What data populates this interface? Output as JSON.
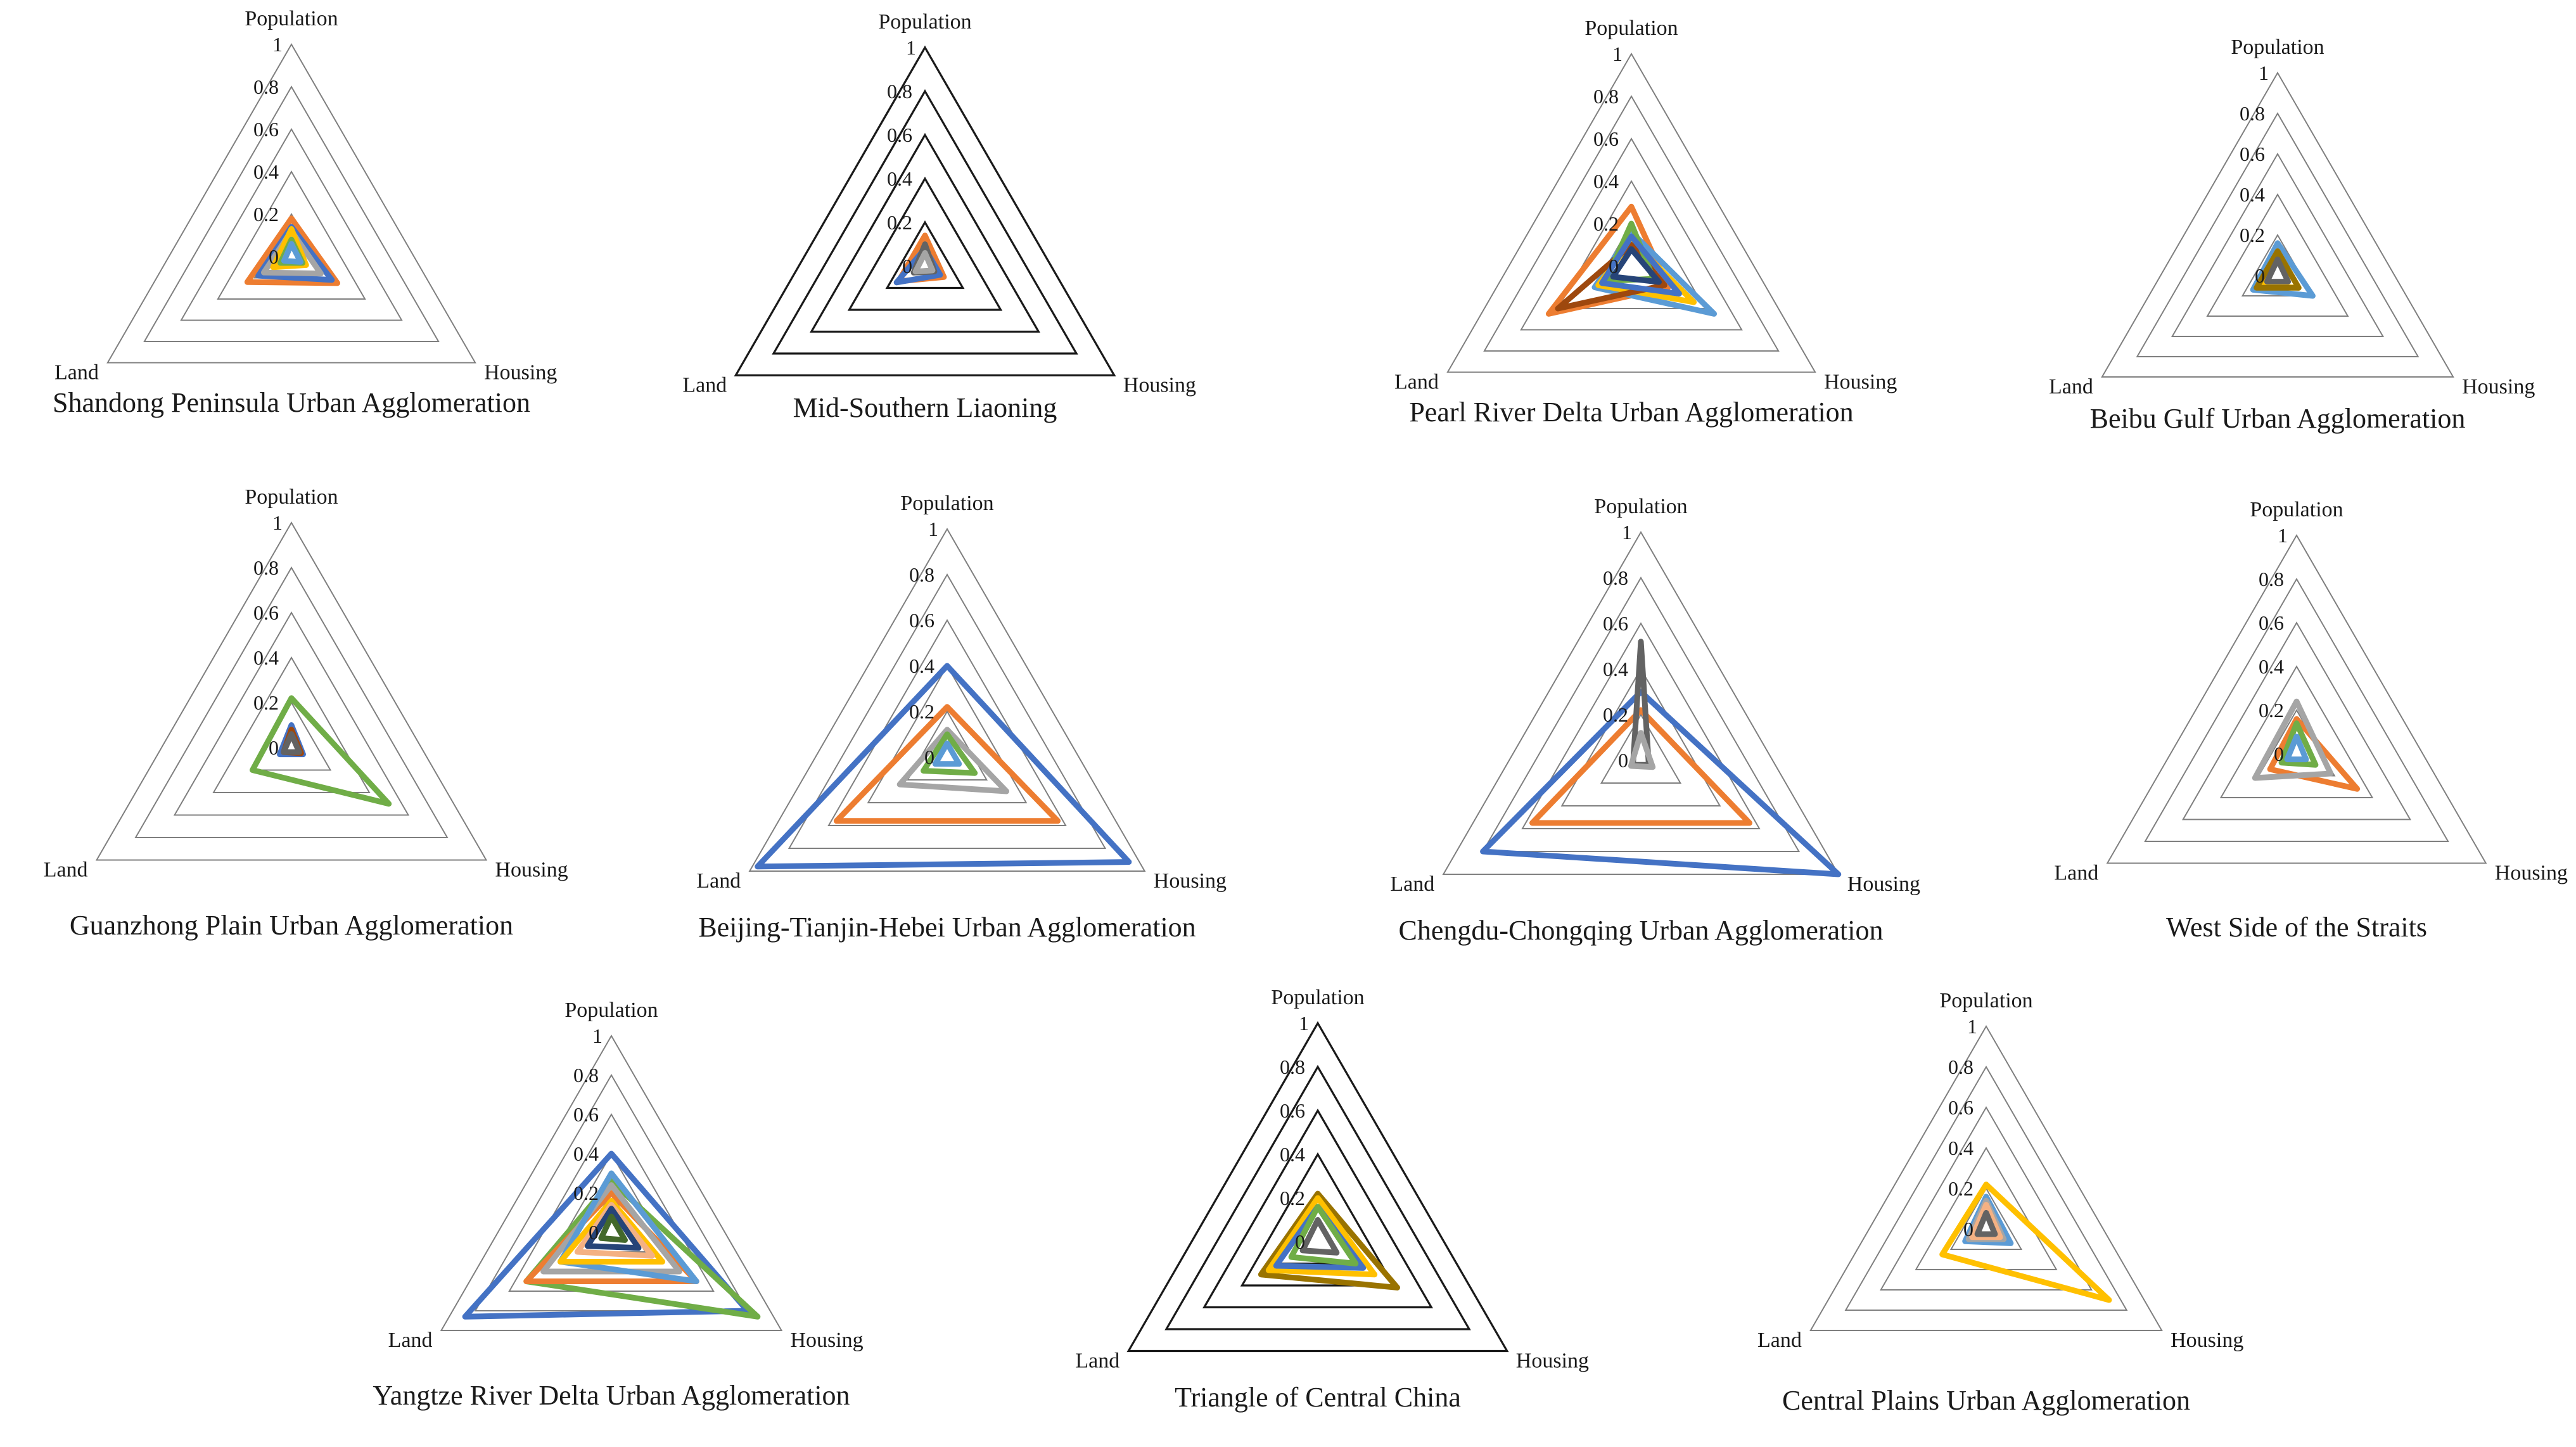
{
  "palette": [
    "#4472C4",
    "#ED7D31",
    "#A5A5A5",
    "#FFC000",
    "#5B9BD5",
    "#70AD47",
    "#264478",
    "#9E480E",
    "#636363",
    "#997300",
    "#43682B",
    "#F4B183"
  ],
  "chart_data": [
    {
      "type": "radar",
      "title": "Shandong Peninsula Urban Agglomeration",
      "axes": [
        "Population",
        "Housing",
        "Land"
      ],
      "rlim": [
        0,
        1
      ],
      "ticks": [
        "0",
        "0.2",
        "0.4",
        "0.6",
        "0.8",
        "1"
      ],
      "grid_color": "#7f7f7f",
      "series": [
        {
          "color": "#ED7D31",
          "values": [
            0.18,
            0.25,
            0.24
          ]
        },
        {
          "color": "#4472C4",
          "values": [
            0.14,
            0.22,
            0.18
          ]
        },
        {
          "color": "#A5A5A5",
          "values": [
            0.12,
            0.16,
            0.15
          ]
        },
        {
          "color": "#FFC000",
          "values": [
            0.13,
            0.08,
            0.1
          ]
        },
        {
          "color": "#70AD47",
          "values": [
            0.08,
            0.06,
            0.06
          ]
        },
        {
          "color": "#5B9BD5",
          "values": [
            0.06,
            0.05,
            0.04
          ]
        }
      ]
    },
    {
      "type": "radar",
      "title": "Mid-Southern Liaoning",
      "axes": [
        "Population",
        "Housing",
        "Land"
      ],
      "rlim": [
        0,
        1
      ],
      "ticks": [
        "0",
        "0.2",
        "0.4",
        "0.6",
        "0.8",
        "1"
      ],
      "grid_color": "#1a1a1a",
      "series": [
        {
          "color": "#ED7D31",
          "values": [
            0.14,
            0.1,
            0.14
          ]
        },
        {
          "color": "#4472C4",
          "values": [
            0.08,
            0.08,
            0.15
          ]
        },
        {
          "color": "#636363",
          "values": [
            0.1,
            0.05,
            0.06
          ]
        },
        {
          "color": "#A5A5A5",
          "values": [
            0.06,
            0.04,
            0.05
          ]
        }
      ]
    },
    {
      "type": "radar",
      "title": "Pearl River Delta Urban Agglomeration",
      "axes": [
        "Population",
        "Housing",
        "Land"
      ],
      "rlim": [
        0,
        1
      ],
      "ticks": [
        "0",
        "0.2",
        "0.4",
        "0.6",
        "0.8",
        "1"
      ],
      "grid_color": "#7f7f7f",
      "series": [
        {
          "color": "#ED7D31",
          "values": [
            0.28,
            0.2,
            0.45
          ]
        },
        {
          "color": "#5B9BD5",
          "values": [
            0.16,
            0.45,
            0.2
          ]
        },
        {
          "color": "#FFC000",
          "values": [
            0.12,
            0.34,
            0.18
          ]
        },
        {
          "color": "#9E480E",
          "values": [
            0.1,
            0.18,
            0.4
          ]
        },
        {
          "color": "#70AD47",
          "values": [
            0.2,
            0.12,
            0.14
          ]
        },
        {
          "color": "#4472C4",
          "values": [
            0.14,
            0.26,
            0.16
          ]
        },
        {
          "color": "#264478",
          "values": [
            0.08,
            0.15,
            0.1
          ]
        }
      ]
    },
    {
      "type": "radar",
      "title": "Beibu Gulf Urban Agglomeration",
      "axes": [
        "Population",
        "Housing",
        "Land"
      ],
      "rlim": [
        0,
        1
      ],
      "ticks": [
        "0",
        "0.2",
        "0.4",
        "0.6",
        "0.8",
        "1"
      ],
      "grid_color": "#7f7f7f",
      "series": [
        {
          "color": "#5B9BD5",
          "values": [
            0.16,
            0.2,
            0.14
          ]
        },
        {
          "color": "#FFC000",
          "values": [
            0.12,
            0.12,
            0.1
          ]
        },
        {
          "color": "#997300",
          "values": [
            0.12,
            0.12,
            0.12
          ]
        },
        {
          "color": "#636363",
          "values": [
            0.08,
            0.06,
            0.06
          ]
        }
      ]
    },
    {
      "type": "radar",
      "title": "Guanzhong Plain Urban Agglomeration",
      "axes": [
        "Population",
        "Housing",
        "Land"
      ],
      "rlim": [
        0,
        1
      ],
      "ticks": [
        "0",
        "0.2",
        "0.4",
        "0.6",
        "0.8",
        "1"
      ],
      "grid_color": "#7f7f7f",
      "series": [
        {
          "color": "#70AD47",
          "values": [
            0.22,
            0.5,
            0.2
          ]
        },
        {
          "color": "#4472C4",
          "values": [
            0.1,
            0.06,
            0.06
          ]
        },
        {
          "color": "#9E480E",
          "values": [
            0.08,
            0.05,
            0.04
          ]
        },
        {
          "color": "#636363",
          "values": [
            0.06,
            0.04,
            0.04
          ]
        }
      ]
    },
    {
      "type": "radar",
      "title": "Beijing-Tianjin-Hebei  Urban Agglomeration",
      "axes": [
        "Population",
        "Housing",
        "Land"
      ],
      "rlim": [
        0,
        1
      ],
      "ticks": [
        "0",
        "0.2",
        "0.4",
        "0.6",
        "0.8",
        "1"
      ],
      "grid_color": "#7f7f7f",
      "series": [
        {
          "color": "#4472C4",
          "values": [
            0.4,
            0.92,
            0.96
          ]
        },
        {
          "color": "#ED7D31",
          "values": [
            0.22,
            0.56,
            0.56
          ]
        },
        {
          "color": "#A5A5A5",
          "values": [
            0.12,
            0.3,
            0.24
          ]
        },
        {
          "color": "#70AD47",
          "values": [
            0.1,
            0.14,
            0.12
          ]
        },
        {
          "color": "#5B9BD5",
          "values": [
            0.06,
            0.06,
            0.06
          ]
        }
      ]
    },
    {
      "type": "radar",
      "title": "Chengdu-Chongqing Urban Agglomeration",
      "axes": [
        "Population",
        "Housing",
        "Land"
      ],
      "rlim": [
        0,
        1
      ],
      "ticks": [
        "0",
        "0.2",
        "0.4",
        "0.6",
        "0.8",
        "1"
      ],
      "grid_color": "#7f7f7f",
      "series": [
        {
          "color": "#4472C4",
          "values": [
            0.3,
            1.0,
            0.8
          ]
        },
        {
          "color": "#ED7D31",
          "values": [
            0.22,
            0.55,
            0.55
          ]
        },
        {
          "color": "#636363",
          "values": [
            0.52,
            0.04,
            0.04
          ]
        },
        {
          "color": "#A5A5A5",
          "values": [
            0.12,
            0.06,
            0.05
          ]
        }
      ]
    },
    {
      "type": "radar",
      "title": "West Side of the Straits",
      "axes": [
        "Population",
        "Housing",
        "Land"
      ],
      "rlim": [
        0,
        1
      ],
      "ticks": [
        "0",
        "0.2",
        "0.4",
        "0.6",
        "0.8",
        "1"
      ],
      "grid_color": "#7f7f7f",
      "series": [
        {
          "color": "#ED7D31",
          "values": [
            0.16,
            0.32,
            0.14
          ]
        },
        {
          "color": "#A5A5A5",
          "values": [
            0.24,
            0.18,
            0.22
          ]
        },
        {
          "color": "#70AD47",
          "values": [
            0.14,
            0.1,
            0.08
          ]
        },
        {
          "color": "#5B9BD5",
          "values": [
            0.08,
            0.05,
            0.05
          ]
        }
      ]
    },
    {
      "type": "radar",
      "title": "Yangtze River Delta Urban Agglomeration",
      "axes": [
        "Population",
        "Housing",
        "Land"
      ],
      "rlim": [
        0,
        1
      ],
      "ticks": [
        "0",
        "0.2",
        "0.4",
        "0.6",
        "0.8",
        "1"
      ],
      "grid_color": "#7f7f7f",
      "series": [
        {
          "color": "#4472C4",
          "values": [
            0.4,
            0.8,
            0.86
          ]
        },
        {
          "color": "#70AD47",
          "values": [
            0.26,
            0.86,
            0.5
          ]
        },
        {
          "color": "#ED7D31",
          "values": [
            0.2,
            0.5,
            0.5
          ]
        },
        {
          "color": "#A5A5A5",
          "values": [
            0.24,
            0.4,
            0.4
          ]
        },
        {
          "color": "#5B9BD5",
          "values": [
            0.3,
            0.5,
            0.3
          ]
        },
        {
          "color": "#FFC000",
          "values": [
            0.16,
            0.3,
            0.3
          ]
        },
        {
          "color": "#F4B183",
          "values": [
            0.14,
            0.24,
            0.2
          ]
        },
        {
          "color": "#264478",
          "values": [
            0.12,
            0.16,
            0.14
          ]
        },
        {
          "color": "#43682B",
          "values": [
            0.08,
            0.08,
            0.06
          ]
        }
      ]
    },
    {
      "type": "radar",
      "title": "Triangle of Central China",
      "axes": [
        "Population",
        "Housing",
        "Land"
      ],
      "rlim": [
        0,
        1
      ],
      "ticks": [
        "0",
        "0.2",
        "0.4",
        "0.6",
        "0.8",
        "1"
      ],
      "grid_color": "#1a1a1a",
      "series": [
        {
          "color": "#997300",
          "values": [
            0.22,
            0.42,
            0.3
          ]
        },
        {
          "color": "#FFC000",
          "values": [
            0.2,
            0.3,
            0.26
          ]
        },
        {
          "color": "#4472C4",
          "values": [
            0.16,
            0.24,
            0.22
          ]
        },
        {
          "color": "#70AD47",
          "values": [
            0.16,
            0.2,
            0.14
          ]
        },
        {
          "color": "#636363",
          "values": [
            0.1,
            0.1,
            0.08
          ]
        }
      ]
    },
    {
      "type": "radar",
      "title": "Central Plains Urban Agglomeration",
      "axes": [
        "Population",
        "Housing",
        "Land"
      ],
      "rlim": [
        0,
        1
      ],
      "ticks": [
        "0",
        "0.2",
        "0.4",
        "0.6",
        "0.8",
        "1"
      ],
      "grid_color": "#7f7f7f",
      "series": [
        {
          "color": "#FFC000",
          "values": [
            0.22,
            0.7,
            0.25
          ]
        },
        {
          "color": "#5B9BD5",
          "values": [
            0.16,
            0.14,
            0.12
          ]
        },
        {
          "color": "#A5A5A5",
          "values": [
            0.14,
            0.1,
            0.1
          ]
        },
        {
          "color": "#F4B183",
          "values": [
            0.12,
            0.08,
            0.08
          ]
        },
        {
          "color": "#636363",
          "values": [
            0.08,
            0.05,
            0.05
          ]
        }
      ]
    }
  ]
}
